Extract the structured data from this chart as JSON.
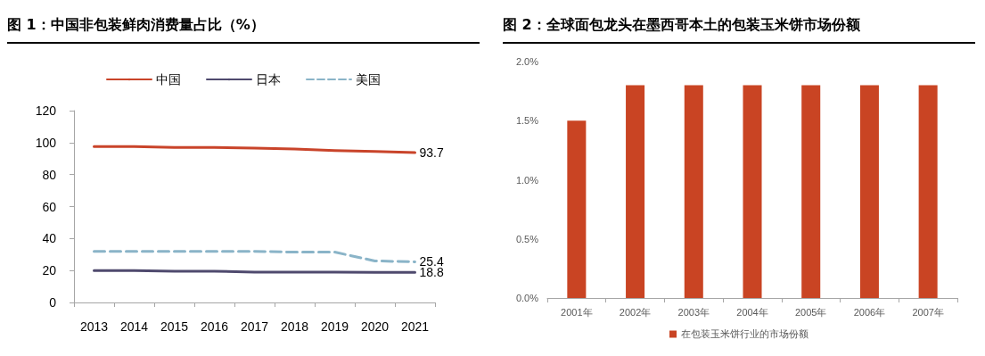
{
  "chart_data": [
    {
      "type": "line",
      "title": "图 1：中国非包装鲜肉消费量占比（%）",
      "categories": [
        "2013",
        "2014",
        "2015",
        "2016",
        "2017",
        "2018",
        "2019",
        "2020",
        "2021"
      ],
      "series": [
        {
          "name": "中国",
          "color": "#c9442a",
          "values": [
            97.6,
            97.6,
            97,
            97,
            96.5,
            96,
            95,
            94.5,
            93.7
          ],
          "value_labels": [
            null,
            null,
            null,
            null,
            null,
            null,
            null,
            null,
            "93.7"
          ]
        },
        {
          "name": "日本",
          "color": "#4f4a6e",
          "values": [
            20,
            20,
            19.5,
            19.5,
            19,
            19,
            19,
            18.8,
            18.8
          ],
          "value_labels": [
            null,
            null,
            null,
            null,
            null,
            null,
            null,
            null,
            "18.8"
          ]
        },
        {
          "name": "美国",
          "color": "#8ab4c8",
          "line_style": "dashed",
          "values": [
            32,
            32,
            32,
            32,
            32,
            31.5,
            31.5,
            26,
            25.4
          ],
          "value_labels": [
            null,
            null,
            null,
            null,
            null,
            null,
            null,
            null,
            "25.4"
          ]
        }
      ],
      "ylim": [
        0,
        120
      ],
      "yticks": [
        0,
        20,
        40,
        60,
        80,
        100,
        120
      ],
      "grid": false,
      "legend": "top",
      "marker": "none",
      "line_style": "solid"
    },
    {
      "type": "bar",
      "title": "图 2：全球面包龙头在墨西哥本土的包装玉米饼市场份额",
      "categories": [
        "2001年",
        "2002年",
        "2003年",
        "2004年",
        "2005年",
        "2006年",
        "2007年"
      ],
      "series": [
        {
          "name": "在包装玉米饼行业的市场份额",
          "color": "#c94423",
          "values": [
            1.5,
            1.8,
            1.8,
            1.8,
            1.8,
            1.8,
            1.8
          ]
        }
      ],
      "ylim": [
        0,
        2
      ],
      "yticks": [
        {
          "value": 0,
          "label": "0.0%"
        },
        {
          "value": 0.5,
          "label": "0.5%"
        },
        {
          "value": 1,
          "label": "1.0%"
        },
        {
          "value": 1.5,
          "label": "1.5%"
        },
        {
          "value": 2,
          "label": "2.0%"
        }
      ],
      "grid": false,
      "legend": "bottom"
    }
  ]
}
